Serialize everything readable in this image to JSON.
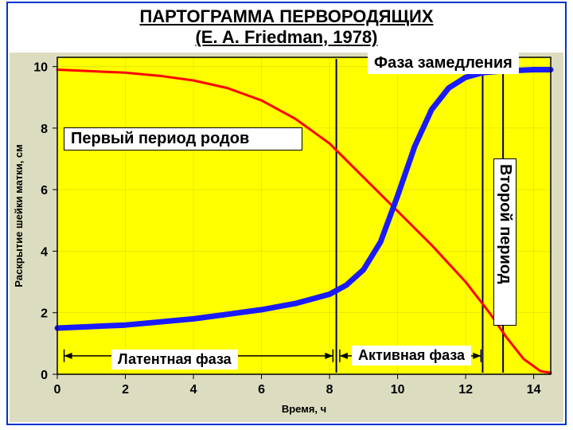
{
  "title_line1": "ПАРТОГРАММА ПЕРВОРОДЯЩИХ",
  "title_line2": "(E. A. Friedman, 1978)",
  "title_fontsize": 22,
  "chart": {
    "type": "line",
    "background_color": "#ffff00",
    "frame_border_color": "#0033cc",
    "outer_plot_bg": "#dcdcc0",
    "axis_color": "#000000",
    "grid_color": "#808060",
    "xlabel": "Время, ч",
    "ylabel": "Раскрытие шейки матки, см",
    "label_fontsize": 13,
    "tick_fontsize": 16,
    "xlim": [
      0,
      14.5
    ],
    "ylim": [
      0,
      10.3
    ],
    "xticks": [
      0,
      2,
      4,
      6,
      8,
      10,
      12,
      14
    ],
    "yticks": [
      0,
      2,
      4,
      6,
      8,
      10
    ],
    "series": [
      {
        "name": "red",
        "color": "#ff0000",
        "width": 3,
        "points": [
          [
            0,
            9.9
          ],
          [
            1,
            9.85
          ],
          [
            2,
            9.8
          ],
          [
            3,
            9.7
          ],
          [
            4,
            9.55
          ],
          [
            5,
            9.3
          ],
          [
            6,
            8.9
          ],
          [
            7,
            8.3
          ],
          [
            8,
            7.5
          ],
          [
            9,
            6.4
          ],
          [
            10,
            5.3
          ],
          [
            11,
            4.2
          ],
          [
            12,
            3.0
          ],
          [
            12.7,
            2.0
          ],
          [
            13.2,
            1.2
          ],
          [
            13.7,
            0.5
          ],
          [
            14.2,
            0.1
          ],
          [
            14.5,
            0.05
          ]
        ]
      },
      {
        "name": "blue",
        "color": "#1a1aff",
        "width": 7,
        "points": [
          [
            0,
            1.5
          ],
          [
            1,
            1.55
          ],
          [
            2,
            1.6
          ],
          [
            3,
            1.7
          ],
          [
            4,
            1.8
          ],
          [
            5,
            1.95
          ],
          [
            6,
            2.1
          ],
          [
            7,
            2.3
          ],
          [
            8,
            2.6
          ],
          [
            8.5,
            2.9
          ],
          [
            9,
            3.4
          ],
          [
            9.5,
            4.3
          ],
          [
            10,
            5.8
          ],
          [
            10.5,
            7.4
          ],
          [
            11,
            8.6
          ],
          [
            11.5,
            9.3
          ],
          [
            12,
            9.65
          ],
          [
            12.5,
            9.8
          ],
          [
            13,
            9.85
          ],
          [
            14,
            9.9
          ],
          [
            14.5,
            9.9
          ]
        ]
      }
    ],
    "verticals_x": [
      8.2,
      12.5,
      13.1
    ],
    "vertical_color": "#000066",
    "separators": [
      {
        "y": 0.6,
        "ranges": [
          [
            0.2,
            8.1
          ],
          [
            8.3,
            12.45
          ]
        ]
      }
    ],
    "separator_color": "#000000"
  },
  "labels": {
    "phase_slowdown": "Фаза  замедления",
    "first_period": "Первый период родов",
    "second_period": "Второй период",
    "latent_phase": "Латентная фаза",
    "active_phase": "Активная фаза"
  },
  "overlay_fontsize_big": 20,
  "overlay_fontsize_med": 18
}
